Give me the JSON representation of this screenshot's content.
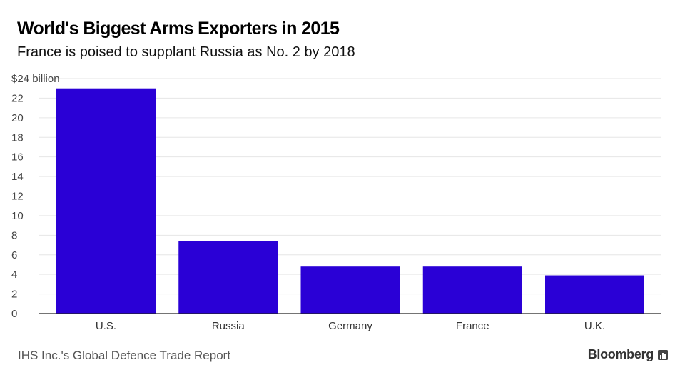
{
  "header": {
    "title": "World's Biggest Arms Exporters in 2015",
    "subtitle": "France is poised to supplant Russia as No. 2 by 2018"
  },
  "footer": {
    "source": "IHS Inc.'s Global Defence Trade Report",
    "brand": "Bloomberg",
    "brand_icon": "bloomberg-bars-icon"
  },
  "colors": {
    "bar": "#2a00d6",
    "grid": "#e6e6e6",
    "axis": "#222222"
  },
  "chart_data": {
    "type": "bar",
    "title": "World's Biggest Arms Exporters in 2015",
    "subtitle": "France is poised to supplant Russia as No. 2 by 2018",
    "categories": [
      "U.S.",
      "Russia",
      "Germany",
      "France",
      "U.K."
    ],
    "values": [
      23.0,
      7.4,
      4.8,
      4.8,
      3.9
    ],
    "ylabel": "",
    "xlabel": "",
    "ylim": [
      0,
      24
    ],
    "yticks": [
      0,
      2,
      4,
      6,
      8,
      10,
      12,
      14,
      16,
      18,
      20,
      22,
      24
    ],
    "ytick_labels": [
      "0",
      "2",
      "4",
      "6",
      "8",
      "10",
      "12",
      "14",
      "16",
      "18",
      "20",
      "22",
      "$24 billion"
    ],
    "grid": true,
    "legend": "none"
  }
}
